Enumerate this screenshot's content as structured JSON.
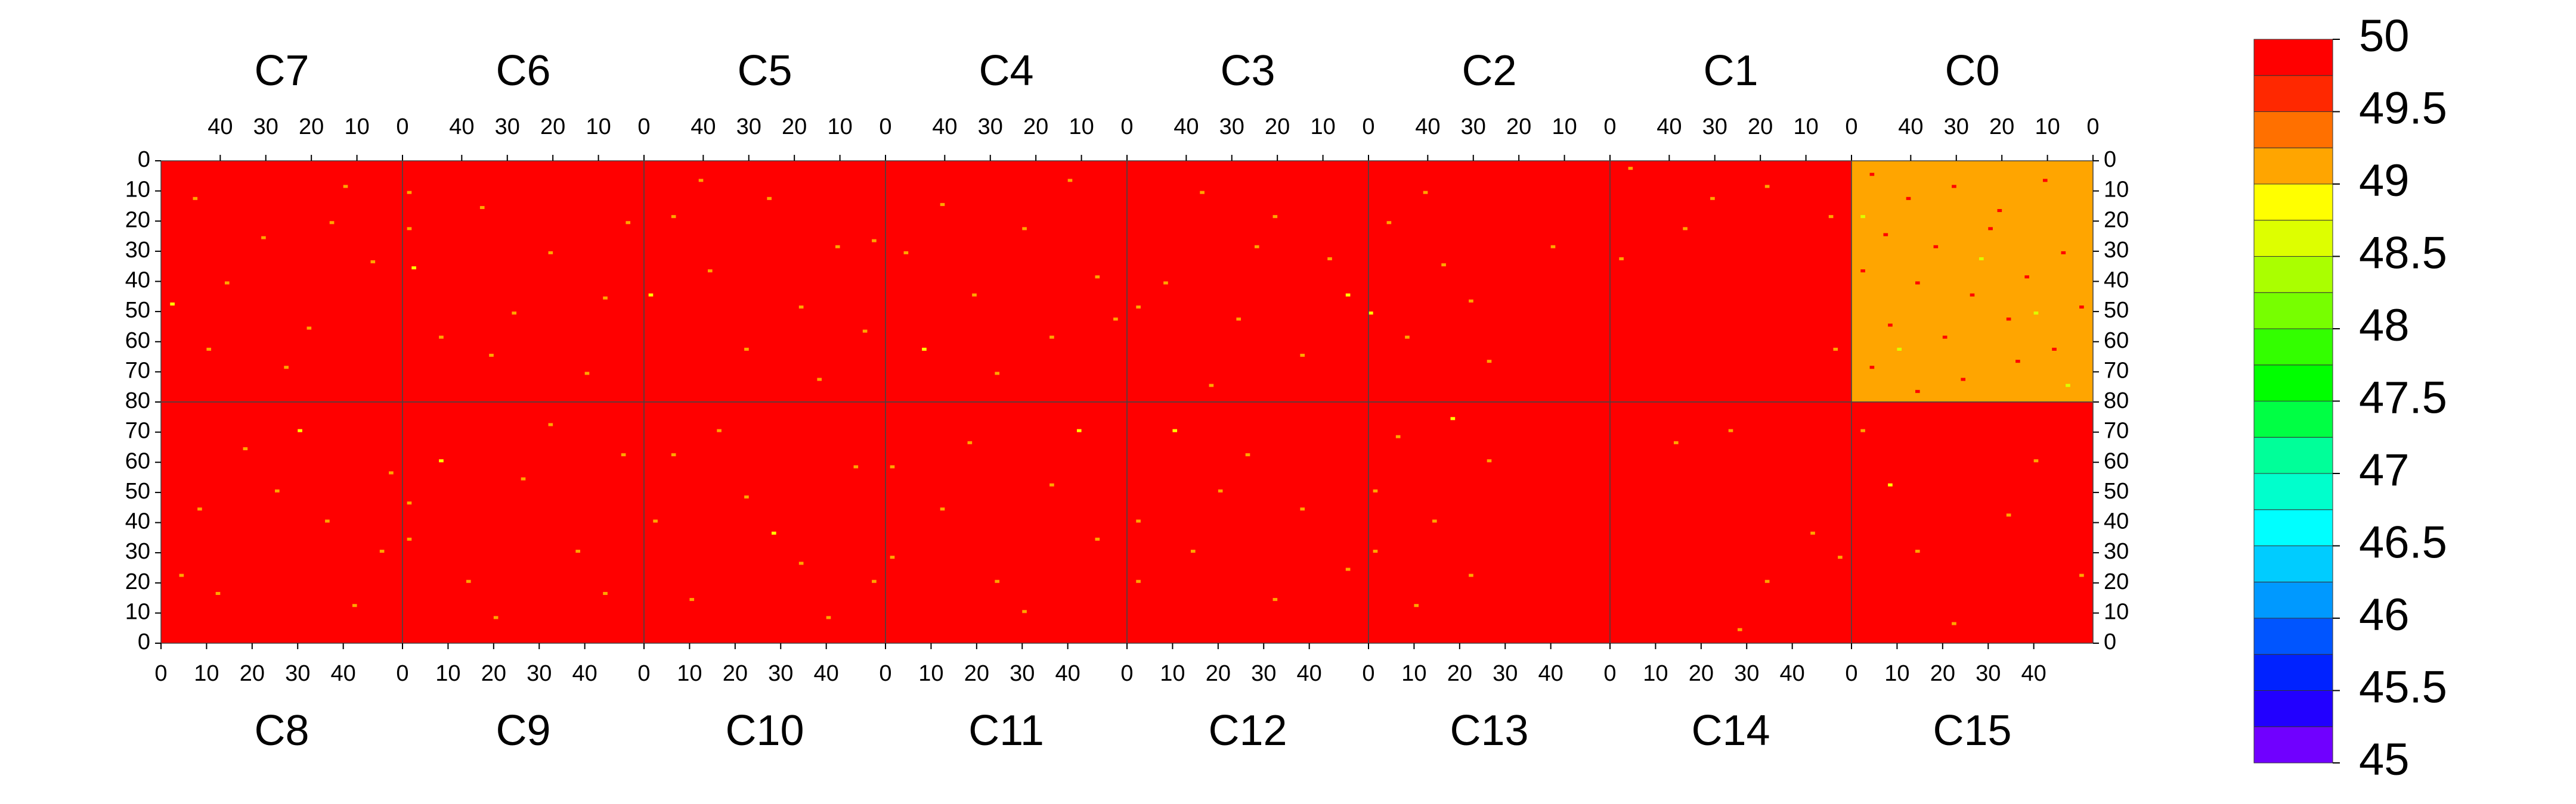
{
  "chart_data": {
    "type": "heatmap",
    "xlim": [
      0,
      53
    ],
    "xticks": [
      0,
      10,
      20,
      30,
      40
    ],
    "zlim": [
      45,
      50
    ],
    "colors": [
      "#7000ff",
      "#2200ff",
      "#0022ff",
      "#0055ff",
      "#0099ff",
      "#00ccff",
      "#00ffff",
      "#00ffcc",
      "#00ff99",
      "#00ff44",
      "#00ff00",
      "#33ff00",
      "#77ff00",
      "#aaff00",
      "#ddff00",
      "#ffff00",
      "#ffa500",
      "#ff7000",
      "#ff2800",
      "#ff0000"
    ],
    "zticks": [
      45,
      45.5,
      46,
      46.5,
      47,
      47.5,
      48,
      48.5,
      49,
      49.5,
      50
    ],
    "rows": [
      {
        "ylim": [
          0,
          80
        ],
        "yticks": [
          0,
          10,
          20,
          30,
          40,
          50,
          60,
          70,
          80
        ],
        "x_reversed": true,
        "y_reversed": true,
        "chips": [
          {
            "name": "C7",
            "base": 50,
            "cells": [
              [
                45,
                12,
                49.1
              ],
              [
                30,
                25,
                49.1
              ],
              [
                12,
                8,
                49.1
              ],
              [
                38,
                40,
                49.1
              ],
              [
                20,
                55,
                49.1
              ],
              [
                6,
                33,
                49.1
              ],
              [
                50,
                47,
                48.9
              ],
              [
                25,
                68,
                49.1
              ],
              [
                15,
                20,
                49.1
              ],
              [
                42,
                62,
                49.1
              ]
            ]
          },
          {
            "name": "C6",
            "base": 50,
            "cells": [
              [
                51,
                10,
                49.1
              ],
              [
                51,
                22,
                49.1
              ],
              [
                35,
                15,
                49.1
              ],
              [
                20,
                30,
                49.1
              ],
              [
                8,
                45,
                49.1
              ],
              [
                28,
                50,
                49.1
              ],
              [
                44,
                58,
                49.1
              ],
              [
                12,
                70,
                49.1
              ],
              [
                50,
                35,
                48.9
              ],
              [
                3,
                20,
                49.1
              ],
              [
                33,
                64,
                49.1
              ]
            ]
          },
          {
            "name": "C5",
            "base": 50,
            "cells": [
              [
                46,
                18,
                49.1
              ],
              [
                25,
                12,
                49.1
              ],
              [
                10,
                28,
                49.1
              ],
              [
                38,
                36,
                49.1
              ],
              [
                18,
                48,
                49.1
              ],
              [
                4,
                56,
                49.1
              ],
              [
                30,
                62,
                49.1
              ],
              [
                51,
                44,
                48.9
              ],
              [
                14,
                72,
                49.1
              ],
              [
                40,
                6,
                49.1
              ],
              [
                2,
                26,
                49.1
              ]
            ]
          },
          {
            "name": "C4",
            "base": 50,
            "cells": [
              [
                40,
                14,
                49.1
              ],
              [
                22,
                22,
                49.1
              ],
              [
                6,
                38,
                49.1
              ],
              [
                33,
                44,
                49.1
              ],
              [
                16,
                58,
                49.1
              ],
              [
                48,
                30,
                49.1
              ],
              [
                28,
                70,
                49.1
              ],
              [
                2,
                52,
                49.1
              ],
              [
                44,
                62,
                48.9
              ],
              [
                12,
                6,
                49.1
              ]
            ]
          },
          {
            "name": "C3",
            "base": 50,
            "cells": [
              [
                36,
                10,
                49.1
              ],
              [
                20,
                18,
                49.1
              ],
              [
                8,
                32,
                49.1
              ],
              [
                44,
                40,
                49.1
              ],
              [
                28,
                52,
                49.1
              ],
              [
                14,
                64,
                49.1
              ],
              [
                50,
                48,
                49.1
              ],
              [
                34,
                74,
                49.1
              ],
              [
                4,
                44,
                48.9
              ],
              [
                24,
                28,
                49.1
              ]
            ]
          },
          {
            "name": "C2",
            "base": 50,
            "cells": [
              [
                48,
                20,
                49.1
              ],
              [
                36,
                34,
                49.1
              ],
              [
                30,
                46,
                49.1
              ],
              [
                44,
                58,
                49.1
              ],
              [
                26,
                66,
                49.1
              ],
              [
                12,
                28,
                49.1
              ],
              [
                52,
                50,
                48.9
              ],
              [
                40,
                10,
                49.1
              ]
            ]
          },
          {
            "name": "C1",
            "base": 50,
            "cells": [
              [
                48,
                2,
                49.1
              ],
              [
                30,
                12,
                49.1
              ],
              [
                4,
                18,
                49.1
              ],
              [
                18,
                8,
                49.1
              ],
              [
                3,
                62,
                49.1
              ],
              [
                50,
                32,
                49.1
              ],
              [
                36,
                22,
                49.1
              ]
            ]
          },
          {
            "name": "C0",
            "base": 49.1,
            "cells": [
              [
                48,
                4,
                50
              ],
              [
                40,
                12,
                50
              ],
              [
                30,
                8,
                50
              ],
              [
                20,
                16,
                50
              ],
              [
                10,
                6,
                50
              ],
              [
                45,
                24,
                50
              ],
              [
                34,
                28,
                50
              ],
              [
                22,
                22,
                50
              ],
              [
                6,
                30,
                50
              ],
              [
                50,
                36,
                50
              ],
              [
                38,
                40,
                50
              ],
              [
                26,
                44,
                50
              ],
              [
                14,
                38,
                50
              ],
              [
                2,
                48,
                50
              ],
              [
                44,
                54,
                50
              ],
              [
                32,
                58,
                50
              ],
              [
                18,
                52,
                50
              ],
              [
                8,
                62,
                50
              ],
              [
                48,
                68,
                50
              ],
              [
                28,
                72,
                50
              ],
              [
                16,
                66,
                50
              ],
              [
                38,
                76,
                50
              ],
              [
                50,
                18,
                48.6
              ],
              [
                24,
                32,
                48.6
              ],
              [
                12,
                50,
                48.6
              ],
              [
                42,
                62,
                48.6
              ],
              [
                5,
                74,
                48.6
              ]
            ]
          }
        ]
      },
      {
        "ylim": [
          0,
          80
        ],
        "yticks": [
          0,
          10,
          20,
          30,
          40,
          50,
          60,
          70
        ],
        "x_reversed": false,
        "y_reversed": false,
        "chips": [
          {
            "name": "C8",
            "base": 50,
            "cells": [
              [
                4,
                22,
                49.1
              ],
              [
                12,
                16,
                49.1
              ],
              [
                25,
                50,
                49.1
              ],
              [
                36,
                40,
                49.1
              ],
              [
                48,
                30,
                49.1
              ],
              [
                18,
                64,
                49.1
              ],
              [
                42,
                12,
                49.1
              ],
              [
                30,
                70,
                48.9
              ],
              [
                8,
                44,
                49.1
              ],
              [
                50,
                56,
                49.1
              ]
            ]
          },
          {
            "name": "C9",
            "base": 50,
            "cells": [
              [
                1,
                34,
                49.1
              ],
              [
                1,
                46,
                49.1
              ],
              [
                14,
                20,
                49.1
              ],
              [
                26,
                54,
                49.1
              ],
              [
                38,
                30,
                49.1
              ],
              [
                48,
                62,
                49.1
              ],
              [
                20,
                8,
                49.1
              ],
              [
                32,
                72,
                49.1
              ],
              [
                8,
                60,
                48.9
              ],
              [
                44,
                16,
                49.1
              ]
            ]
          },
          {
            "name": "C10",
            "base": 50,
            "cells": [
              [
                2,
                40,
                49.1
              ],
              [
                10,
                14,
                49.1
              ],
              [
                22,
                48,
                49.1
              ],
              [
                34,
                26,
                49.1
              ],
              [
                46,
                58,
                49.1
              ],
              [
                16,
                70,
                49.1
              ],
              [
                40,
                8,
                49.1
              ],
              [
                28,
                36,
                48.9
              ],
              [
                6,
                62,
                49.1
              ],
              [
                50,
                20,
                49.1
              ]
            ]
          },
          {
            "name": "C11",
            "base": 50,
            "cells": [
              [
                1,
                28,
                49.1
              ],
              [
                1,
                58,
                49.1
              ],
              [
                12,
                44,
                49.1
              ],
              [
                24,
                20,
                49.1
              ],
              [
                36,
                52,
                49.1
              ],
              [
                46,
                34,
                49.1
              ],
              [
                18,
                66,
                49.1
              ],
              [
                30,
                10,
                49.1
              ],
              [
                42,
                70,
                48.9
              ]
            ]
          },
          {
            "name": "C12",
            "base": 50,
            "cells": [
              [
                2,
                20,
                49.1
              ],
              [
                2,
                40,
                49.1
              ],
              [
                14,
                30,
                49.1
              ],
              [
                26,
                62,
                49.1
              ],
              [
                38,
                44,
                49.1
              ],
              [
                48,
                24,
                49.1
              ],
              [
                20,
                50,
                49.1
              ],
              [
                32,
                14,
                49.1
              ],
              [
                10,
                70,
                48.9
              ]
            ]
          },
          {
            "name": "C13",
            "base": 50,
            "cells": [
              [
                1,
                30,
                49.1
              ],
              [
                1,
                50,
                49.1
              ],
              [
                6,
                68,
                49.1
              ],
              [
                14,
                40,
                49.1
              ],
              [
                22,
                22,
                49.1
              ],
              [
                26,
                60,
                49.1
              ],
              [
                10,
                12,
                49.1
              ],
              [
                18,
                74,
                48.9
              ]
            ]
          },
          {
            "name": "C14",
            "base": 50,
            "cells": [
              [
                28,
                4,
                49.1
              ],
              [
                34,
                20,
                49.1
              ],
              [
                14,
                66,
                49.1
              ],
              [
                44,
                36,
                49.1
              ],
              [
                26,
                70,
                49.1
              ],
              [
                50,
                28,
                49.1
              ]
            ]
          },
          {
            "name": "C15",
            "base": 50,
            "cells": [
              [
                2,
                70,
                49.1
              ],
              [
                50,
                22,
                49.1
              ],
              [
                22,
                6,
                49.1
              ],
              [
                34,
                42,
                49.1
              ],
              [
                14,
                30,
                49.1
              ],
              [
                40,
                60,
                49.1
              ],
              [
                8,
                52,
                48.9
              ]
            ]
          }
        ]
      }
    ]
  }
}
